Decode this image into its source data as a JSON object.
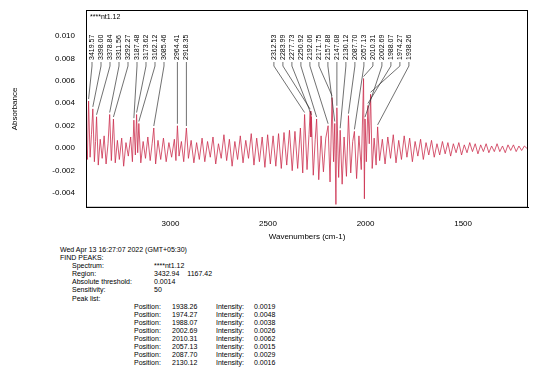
{
  "chart_data": {
    "type": "line",
    "title": "****nt1.12",
    "x_label": "Wavenumbers (cm-1)",
    "y_label": "Absorbance",
    "color": "#cc2e4e",
    "grid": false,
    "xlim": [
      3432.94,
      1167.42
    ],
    "xticks": [
      3000,
      2500,
      2000,
      1500
    ],
    "ylim": [
      -0.0053,
      0.0123
    ],
    "yticks": [
      {
        "value": -0.004,
        "label": "-0.004"
      },
      {
        "value": -0.002,
        "label": "-0.002"
      },
      {
        "value": 0,
        "label": "0.000"
      },
      {
        "value": 0.002,
        "label": "0.002"
      },
      {
        "value": 0.004,
        "label": "0.004"
      },
      {
        "value": 0.006,
        "label": "0.006"
      },
      {
        "value": 0.008,
        "label": "0.008"
      },
      {
        "value": 0.01,
        "label": "0.010"
      }
    ],
    "x": [
      3432.94,
      3426,
      3419.57,
      3412,
      3405,
      3398.0,
      3390,
      3384,
      3378.84,
      3370,
      3360,
      3350,
      3340,
      3330,
      3320,
      3311.56,
      3303,
      3292.27,
      3283,
      3272,
      3262,
      3250,
      3240,
      3228,
      3216,
      3204,
      3195,
      3187.48,
      3180,
      3173.62,
      3168,
      3162.12,
      3152,
      3140,
      3128,
      3116,
      3104,
      3094,
      3085.46,
      3076,
      3064,
      3050,
      3036,
      3022,
      3008,
      2994,
      2980,
      2972,
      2964.41,
      2956,
      2944,
      2932,
      2918.35,
      2908,
      2894,
      2880,
      2866,
      2852,
      2838,
      2824,
      2810,
      2796,
      2782,
      2768,
      2754,
      2740,
      2726,
      2712,
      2698,
      2684,
      2670,
      2656,
      2642,
      2628,
      2614,
      2600,
      2586,
      2572,
      2558,
      2544,
      2530,
      2516,
      2502,
      2488,
      2474,
      2460,
      2446,
      2432,
      2418,
      2404,
      2390,
      2376,
      2362,
      2348,
      2334,
      2322,
      2312.53,
      2300,
      2290,
      2283.99,
      2280,
      2277.73,
      2268,
      2258,
      2250.92,
      2240,
      2228,
      2216,
      2204,
      2192.06,
      2182,
      2171.75,
      2164,
      2157.88,
      2152,
      2147.08,
      2138,
      2130.12,
      2120,
      2110,
      2098,
      2087.7,
      2076,
      2066,
      2057.13,
      2046,
      2034,
      2022,
      2010.31,
      2006,
      2002.69,
      1996,
      1988.07,
      1981,
      1974.27,
      1966,
      1956,
      1946,
      1938.26,
      1928,
      1914,
      1900,
      1886,
      1872,
      1858,
      1844,
      1830,
      1816,
      1802,
      1788,
      1774,
      1760,
      1746,
      1732,
      1718,
      1704,
      1690,
      1676,
      1662,
      1648,
      1634,
      1620,
      1606,
      1592,
      1578,
      1564,
      1550,
      1536,
      1522,
      1508,
      1494,
      1480,
      1466,
      1452,
      1438,
      1424,
      1410,
      1396,
      1382,
      1368,
      1354,
      1340,
      1326,
      1312,
      1298,
      1284,
      1270,
      1256,
      1242,
      1228,
      1214,
      1200,
      1186,
      1167.42
    ],
    "values": [
      0.0005,
      -0.001,
      0.0042,
      -0.0008,
      0.0012,
      0.0035,
      -0.0012,
      0.0006,
      0.0028,
      -0.0015,
      0.0008,
      -0.0009,
      0.0011,
      -0.0014,
      0.0004,
      0.003,
      -0.0011,
      0.0026,
      -0.0013,
      0.0007,
      -0.001,
      0.0009,
      -0.0016,
      0.0005,
      -0.0007,
      0.001,
      -0.0012,
      0.0025,
      -0.0006,
      0.003,
      -0.0004,
      0.0022,
      -0.0013,
      0.0006,
      -0.0009,
      0.001,
      -0.0011,
      0.0004,
      0.0018,
      -0.0014,
      0.0007,
      -0.001,
      0.0009,
      -0.0012,
      0.0005,
      -0.0008,
      0.0008,
      -0.0011,
      0.002,
      -0.0007,
      0.0006,
      -0.0012,
      0.0018,
      -0.0009,
      0.0007,
      -0.0013,
      0.0005,
      -0.001,
      0.0009,
      -0.0012,
      0.0006,
      -0.0008,
      0.001,
      -0.0014,
      0.0004,
      -0.0009,
      0.0012,
      -0.0011,
      0.0008,
      -0.0016,
      0.0006,
      -0.001,
      0.0011,
      -0.0013,
      0.0007,
      -0.0009,
      0.0013,
      -0.0015,
      0.0009,
      -0.0012,
      0.001,
      -0.0017,
      0.0012,
      -0.0014,
      0.0011,
      -0.0016,
      0.0013,
      -0.0018,
      0.0014,
      -0.0015,
      0.0016,
      -0.002,
      0.0015,
      -0.0018,
      0.0018,
      -0.0022,
      0.003,
      -0.0019,
      0.0012,
      0.0033,
      0.001,
      0.0028,
      -0.0024,
      0.0008,
      0.0026,
      -0.0028,
      0.0011,
      -0.0021,
      0.0009,
      0.002,
      -0.003,
      0.0045,
      -0.0012,
      0.0022,
      -0.005,
      0.0036,
      -0.0026,
      0.0016,
      -0.0032,
      0.001,
      -0.0025,
      0.0029,
      -0.0022,
      0.0006,
      0.0015,
      -0.0027,
      0.0011,
      -0.0019,
      0.0062,
      -0.0045,
      0.0026,
      -0.0012,
      0.0038,
      0.0004,
      0.0048,
      -0.0018,
      0.0009,
      -0.0015,
      0.0019,
      -0.0011,
      0.0008,
      -0.0014,
      0.001,
      -0.0009,
      0.0012,
      -0.0013,
      0.0007,
      -0.001,
      0.0011,
      -0.0008,
      0.0009,
      -0.0012,
      0.0006,
      -0.0007,
      0.0008,
      -0.001,
      0.0005,
      -0.0006,
      0.0007,
      -0.0008,
      0.0004,
      -0.0006,
      0.0006,
      -0.0005,
      0.0005,
      -0.0007,
      0.0004,
      -0.0004,
      0.0005,
      -0.0006,
      0.0003,
      -0.0004,
      0.0005,
      -0.0003,
      0.0004,
      -0.0005,
      0.0003,
      -0.0003,
      0.0004,
      -0.0004,
      0.0002,
      -0.0003,
      0.0004,
      -0.0003,
      0.0002,
      -0.0004,
      0.0003,
      -0.0002,
      0.0003,
      -0.0003,
      0.0002,
      -0.0002,
      0.0002,
      -0.0001
    ],
    "annotations": [
      {
        "value": 3419.57,
        "label": "3419.57"
      },
      {
        "value": 3398.0,
        "label": "3398.00"
      },
      {
        "value": 3378.84,
        "label": "3378.84"
      },
      {
        "value": 3311.56,
        "label": "3311.56"
      },
      {
        "value": 3292.27,
        "label": "3292.27"
      },
      {
        "value": 3187.48,
        "label": "3187.48"
      },
      {
        "value": 3173.62,
        "label": "3173.62"
      },
      {
        "value": 3162.12,
        "label": "3162.12"
      },
      {
        "value": 3085.46,
        "label": "3085.46"
      },
      {
        "value": 2964.41,
        "label": "2964.41"
      },
      {
        "value": 2918.35,
        "label": "2918.35"
      },
      {
        "value": 2312.53,
        "label": "2312.53"
      },
      {
        "value": 2283.99,
        "label": "2283.99"
      },
      {
        "value": 2277.73,
        "label": "2277.73"
      },
      {
        "value": 2250.92,
        "label": "2250.92"
      },
      {
        "value": 2192.06,
        "label": "2192.06"
      },
      {
        "value": 2171.75,
        "label": "2171.75"
      },
      {
        "value": 2157.88,
        "label": "2157.88"
      },
      {
        "value": 2147.08,
        "label": "2147.08"
      },
      {
        "value": 2130.12,
        "label": "2130.12"
      },
      {
        "value": 2087.7,
        "label": "2087.70"
      },
      {
        "value": 2057.13,
        "label": "2057.13"
      },
      {
        "value": 2010.31,
        "label": "2010.31"
      },
      {
        "value": 2002.69,
        "label": "2002.69"
      },
      {
        "value": 1988.07,
        "label": "1988.07"
      },
      {
        "value": 1974.27,
        "label": "1974.27"
      },
      {
        "value": 1938.26,
        "label": "1938.26"
      }
    ]
  },
  "report": {
    "timestamp": "Wed Apr 13 16:27:07 2022 (GMT+05:30)",
    "heading": "FIND PEAKS:",
    "fields": [
      [
        "Spectrum:",
        "****nt1.12"
      ],
      [
        "Region:",
        "3432.94",
        "1167.42"
      ],
      [
        "Absolute threshold:",
        "0.0014"
      ],
      [
        "Sensitivity:",
        "50"
      ],
      [
        "Peak list:"
      ]
    ],
    "peak_columns": [
      "Position:",
      "Intensity:"
    ],
    "peak_rows": [
      [
        "1938.26",
        "0.0019"
      ],
      [
        "1974.27",
        "0.0048"
      ],
      [
        "1988.07",
        "0.0038"
      ],
      [
        "2002.69",
        "0.0026"
      ],
      [
        "2010.31",
        "0.0062"
      ],
      [
        "2057.13",
        "0.0015"
      ],
      [
        "2087.70",
        "0.0029"
      ],
      [
        "2130.12",
        "0.0016"
      ]
    ]
  }
}
